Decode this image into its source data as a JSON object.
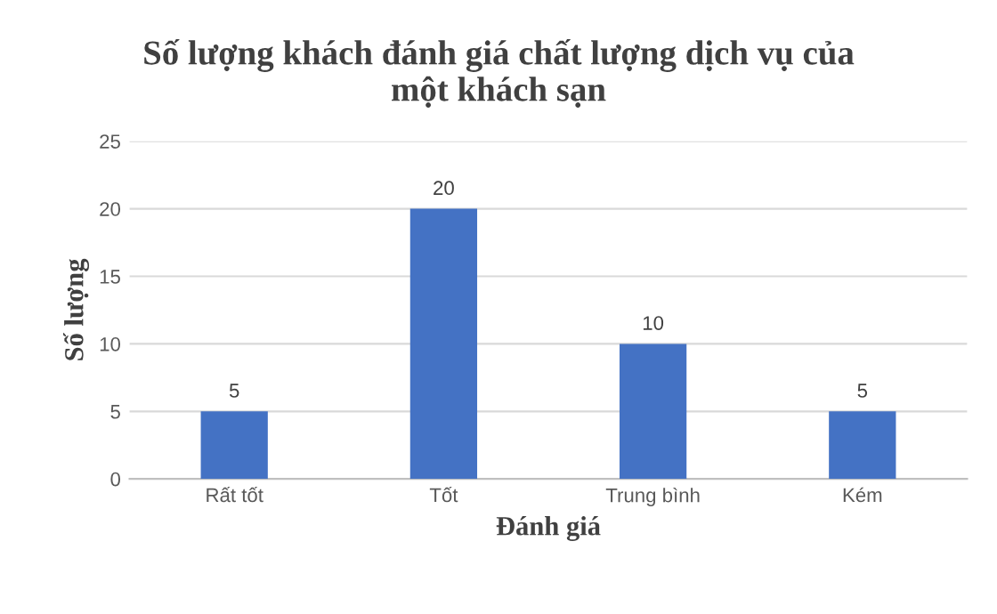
{
  "chart_data": {
    "type": "bar",
    "title": "Số lượng khách đánh giá chất lượng dịch vụ của\nmột khách sạn",
    "xlabel": "Đánh giá",
    "ylabel": "Số lượng",
    "categories": [
      "Rất tốt",
      "Tốt",
      "Trung bình",
      "Kém"
    ],
    "values": [
      5,
      20,
      10,
      5
    ],
    "color": "#4472c4",
    "ylim": [
      0,
      25
    ],
    "yticks": [
      0,
      5,
      10,
      15,
      20,
      25
    ],
    "grid": "y",
    "data_labels": true
  }
}
